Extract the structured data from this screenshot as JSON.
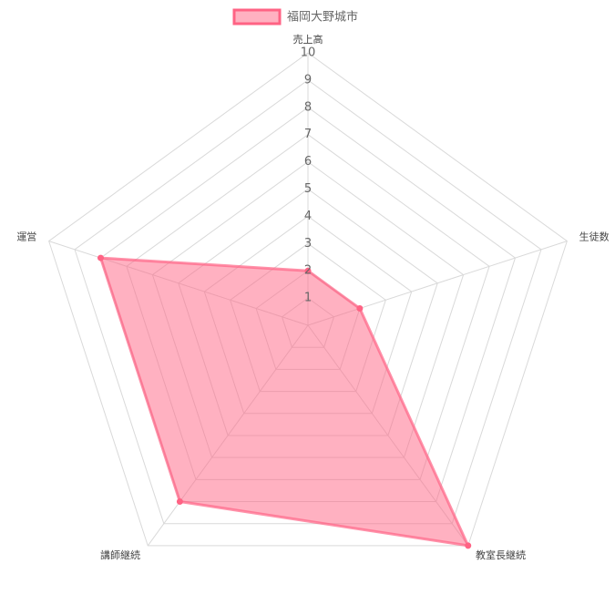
{
  "chart_data": {
    "type": "radar",
    "categories": [
      "売上高",
      "生徒数",
      "教室長継続",
      "講師継続",
      "運営"
    ],
    "series": [
      {
        "name": "福岡大野城市",
        "color": "#ff6384",
        "values": [
          2,
          2,
          10,
          8,
          8
        ]
      }
    ],
    "rlim": [
      0,
      10
    ],
    "rticks": [
      1,
      2,
      3,
      4,
      5,
      6,
      7,
      8,
      9,
      10
    ],
    "grid": true,
    "legend": "top"
  }
}
